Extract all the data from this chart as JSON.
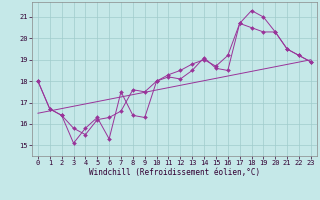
{
  "xlabel": "Windchill (Refroidissement éolien,°C)",
  "background_color": "#c5e8e8",
  "grid_color": "#a0cccc",
  "line_color": "#993399",
  "xlim": [
    -0.5,
    23.5
  ],
  "ylim": [
    14.5,
    21.7
  ],
  "xticks": [
    0,
    1,
    2,
    3,
    4,
    5,
    6,
    7,
    8,
    9,
    10,
    11,
    12,
    13,
    14,
    15,
    16,
    17,
    18,
    19,
    20,
    21,
    22,
    23
  ],
  "yticks": [
    15,
    16,
    17,
    18,
    19,
    20,
    21
  ],
  "line1_x": [
    0,
    1,
    2,
    3,
    4,
    5,
    6,
    7,
    8,
    9,
    10,
    11,
    12,
    13,
    14,
    15,
    16,
    17,
    18,
    19,
    20,
    21,
    22,
    23
  ],
  "line1_y": [
    18.0,
    16.7,
    16.4,
    15.1,
    15.8,
    16.3,
    15.3,
    17.5,
    16.4,
    16.3,
    18.0,
    18.2,
    18.1,
    18.5,
    19.1,
    18.6,
    18.5,
    20.7,
    21.3,
    21.0,
    20.3,
    19.5,
    19.2,
    18.9
  ],
  "line2_x": [
    0,
    1,
    2,
    3,
    4,
    5,
    6,
    7,
    8,
    9,
    10,
    11,
    12,
    13,
    14,
    15,
    16,
    17,
    18,
    19,
    20,
    21,
    22,
    23
  ],
  "line2_y": [
    18.0,
    16.7,
    16.4,
    15.8,
    15.5,
    16.2,
    16.3,
    16.6,
    17.6,
    17.5,
    18.0,
    18.3,
    18.5,
    18.8,
    19.0,
    18.7,
    19.2,
    20.7,
    20.5,
    20.3,
    20.3,
    19.5,
    19.2,
    18.9
  ],
  "line3_x": [
    0,
    23
  ],
  "line3_y": [
    16.5,
    19.0
  ],
  "tick_fontsize": 5.0,
  "xlabel_fontsize": 5.5
}
